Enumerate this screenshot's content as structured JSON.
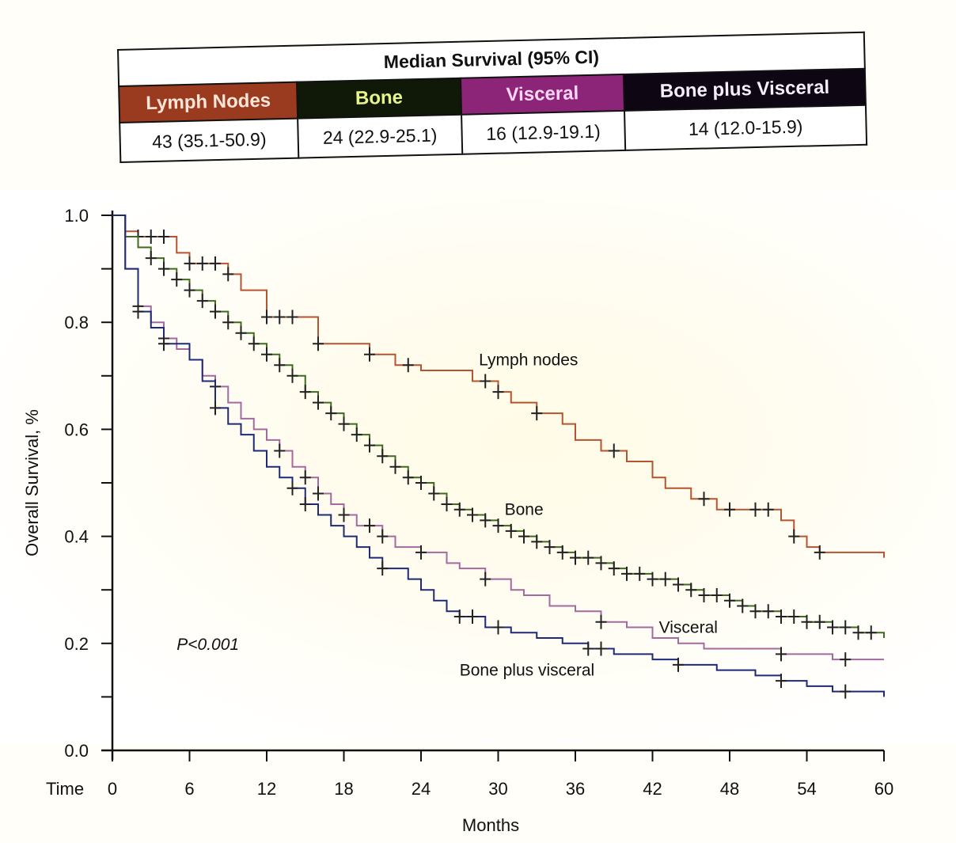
{
  "table": {
    "title": "Median Survival (95% CI)",
    "columns": [
      {
        "label": "Lymph Nodes",
        "value": "43 (35.1-50.9)",
        "bg": "#9a3a1f",
        "fg": "#ffe6d8"
      },
      {
        "label": "Bone",
        "value": "24 (22.9-25.1)",
        "bg": "#101808",
        "fg": "#e8f58a"
      },
      {
        "label": "Visceral",
        "value": "16 (12.9-19.1)",
        "bg": "#8c2478",
        "fg": "#ffd6f4"
      },
      {
        "label": "Bone plus Visceral",
        "value": "14 (12.0-15.9)",
        "bg": "#0e0612",
        "fg": "#f4eefa"
      }
    ]
  },
  "chart_data": {
    "type": "line",
    "subtype": "kaplan-meier step",
    "xlabel": "Months",
    "ylabel": "Overall Survival, %",
    "x_prefix_label": "Time",
    "xlim": [
      0,
      60
    ],
    "ylim": [
      0,
      1.0
    ],
    "x_ticks": [
      0,
      6,
      12,
      18,
      24,
      30,
      36,
      42,
      48,
      54,
      60
    ],
    "x_tick_labels": [
      "0",
      "6",
      "12",
      "18",
      "24",
      "30",
      "36",
      "42",
      "48",
      "54",
      "60"
    ],
    "y_ticks": [
      0.0,
      0.1,
      0.2,
      0.3,
      0.4,
      0.5,
      0.6,
      0.7,
      0.8,
      0.9,
      1.0
    ],
    "y_tick_labels": [
      "0.0",
      "0.2",
      "0.4",
      "0.6",
      "0.8",
      "1.0"
    ],
    "grid": false,
    "annotations": [
      {
        "text": "P<0.001",
        "x": 5,
        "y": 0.2
      }
    ],
    "series": [
      {
        "name": "Lymph nodes",
        "color": "#b5542f",
        "label_at": {
          "x": 28.5,
          "y": 0.72
        },
        "steps": [
          [
            0,
            1.0
          ],
          [
            1,
            0.97
          ],
          [
            2,
            0.96
          ],
          [
            5,
            0.93
          ],
          [
            6,
            0.91
          ],
          [
            9,
            0.89
          ],
          [
            10,
            0.86
          ],
          [
            12,
            0.81
          ],
          [
            16,
            0.76
          ],
          [
            20,
            0.74
          ],
          [
            22,
            0.72
          ],
          [
            24,
            0.71
          ],
          [
            28,
            0.69
          ],
          [
            30,
            0.67
          ],
          [
            31,
            0.65
          ],
          [
            33,
            0.63
          ],
          [
            35,
            0.61
          ],
          [
            36,
            0.58
          ],
          [
            38,
            0.56
          ],
          [
            40,
            0.54
          ],
          [
            42,
            0.51
          ],
          [
            43,
            0.49
          ],
          [
            45,
            0.47
          ],
          [
            47,
            0.45
          ],
          [
            52,
            0.43
          ],
          [
            53,
            0.4
          ],
          [
            54,
            0.38
          ],
          [
            55,
            0.37
          ],
          [
            60,
            0.36
          ]
        ],
        "censor_x": [
          2,
          3,
          4,
          6,
          7,
          8,
          9,
          12,
          13,
          14,
          16,
          20,
          23,
          29,
          30,
          33,
          39,
          46,
          48,
          50,
          51,
          53,
          55
        ]
      },
      {
        "name": "Bone",
        "color": "#3f6b1f",
        "label_at": {
          "x": 30.5,
          "y": 0.44
        },
        "steps": [
          [
            0,
            1.0
          ],
          [
            1,
            0.96
          ],
          [
            2,
            0.94
          ],
          [
            3,
            0.92
          ],
          [
            4,
            0.9
          ],
          [
            5,
            0.88
          ],
          [
            6,
            0.86
          ],
          [
            7,
            0.84
          ],
          [
            8,
            0.82
          ],
          [
            9,
            0.8
          ],
          [
            10,
            0.78
          ],
          [
            11,
            0.76
          ],
          [
            12,
            0.74
          ],
          [
            13,
            0.72
          ],
          [
            14,
            0.7
          ],
          [
            15,
            0.67
          ],
          [
            16,
            0.65
          ],
          [
            17,
            0.63
          ],
          [
            18,
            0.61
          ],
          [
            19,
            0.59
          ],
          [
            20,
            0.57
          ],
          [
            21,
            0.55
          ],
          [
            22,
            0.53
          ],
          [
            23,
            0.51
          ],
          [
            24,
            0.5
          ],
          [
            25,
            0.48
          ],
          [
            26,
            0.46
          ],
          [
            27,
            0.45
          ],
          [
            28,
            0.44
          ],
          [
            29,
            0.43
          ],
          [
            30,
            0.42
          ],
          [
            31,
            0.41
          ],
          [
            32,
            0.4
          ],
          [
            33,
            0.39
          ],
          [
            34,
            0.38
          ],
          [
            35,
            0.37
          ],
          [
            36,
            0.36
          ],
          [
            38,
            0.35
          ],
          [
            39,
            0.34
          ],
          [
            40,
            0.33
          ],
          [
            42,
            0.32
          ],
          [
            44,
            0.31
          ],
          [
            45,
            0.3
          ],
          [
            46,
            0.29
          ],
          [
            48,
            0.28
          ],
          [
            49,
            0.27
          ],
          [
            50,
            0.26
          ],
          [
            52,
            0.25
          ],
          [
            54,
            0.24
          ],
          [
            56,
            0.23
          ],
          [
            58,
            0.22
          ],
          [
            60,
            0.21
          ]
        ],
        "censor_x": [
          3,
          4,
          5,
          6,
          7,
          8,
          9,
          10,
          11,
          12,
          13,
          14,
          15,
          16,
          17,
          18,
          19,
          20,
          21,
          22,
          23,
          24,
          25,
          26,
          27,
          28,
          29,
          30,
          31,
          32,
          33,
          34,
          35,
          36,
          37,
          38,
          39,
          40,
          41,
          42,
          43,
          44,
          45,
          46,
          47,
          48,
          49,
          50,
          51,
          52,
          53,
          54,
          55,
          56,
          57,
          58,
          59
        ]
      },
      {
        "name": "Visceral",
        "color": "#a46a9e",
        "label_at": {
          "x": 42.5,
          "y": 0.22
        },
        "steps": [
          [
            0,
            1.0
          ],
          [
            1,
            0.9
          ],
          [
            2,
            0.83
          ],
          [
            3,
            0.8
          ],
          [
            4,
            0.77
          ],
          [
            5,
            0.75
          ],
          [
            6,
            0.73
          ],
          [
            7,
            0.7
          ],
          [
            8,
            0.68
          ],
          [
            9,
            0.65
          ],
          [
            10,
            0.62
          ],
          [
            11,
            0.6
          ],
          [
            12,
            0.58
          ],
          [
            13,
            0.56
          ],
          [
            14,
            0.53
          ],
          [
            15,
            0.51
          ],
          [
            16,
            0.48
          ],
          [
            17,
            0.46
          ],
          [
            18,
            0.44
          ],
          [
            19,
            0.42
          ],
          [
            21,
            0.4
          ],
          [
            22,
            0.38
          ],
          [
            24,
            0.37
          ],
          [
            26,
            0.35
          ],
          [
            27,
            0.34
          ],
          [
            29,
            0.32
          ],
          [
            31,
            0.3
          ],
          [
            32,
            0.29
          ],
          [
            34,
            0.27
          ],
          [
            36,
            0.26
          ],
          [
            38,
            0.24
          ],
          [
            40,
            0.23
          ],
          [
            42,
            0.21
          ],
          [
            44,
            0.2
          ],
          [
            46,
            0.19
          ],
          [
            52,
            0.18
          ],
          [
            56,
            0.17
          ],
          [
            60,
            0.17
          ]
        ],
        "censor_x": [
          2,
          4,
          8,
          13,
          15,
          16,
          18,
          20,
          21,
          24,
          29,
          38,
          52,
          57
        ]
      },
      {
        "name": "Bone plus visceral",
        "color": "#1e2a78",
        "label_at": {
          "x": 27,
          "y": 0.14
        },
        "steps": [
          [
            0,
            1.0
          ],
          [
            1,
            0.9
          ],
          [
            2,
            0.82
          ],
          [
            3,
            0.79
          ],
          [
            4,
            0.76
          ],
          [
            6,
            0.73
          ],
          [
            7,
            0.69
          ],
          [
            8,
            0.64
          ],
          [
            9,
            0.61
          ],
          [
            10,
            0.59
          ],
          [
            11,
            0.56
          ],
          [
            12,
            0.53
          ],
          [
            13,
            0.51
          ],
          [
            14,
            0.49
          ],
          [
            15,
            0.46
          ],
          [
            16,
            0.44
          ],
          [
            17,
            0.42
          ],
          [
            18,
            0.4
          ],
          [
            19,
            0.38
          ],
          [
            20,
            0.36
          ],
          [
            21,
            0.34
          ],
          [
            23,
            0.32
          ],
          [
            24,
            0.3
          ],
          [
            25,
            0.28
          ],
          [
            26,
            0.26
          ],
          [
            27,
            0.25
          ],
          [
            29,
            0.23
          ],
          [
            31,
            0.22
          ],
          [
            33,
            0.21
          ],
          [
            35,
            0.2
          ],
          [
            37,
            0.19
          ],
          [
            39,
            0.18
          ],
          [
            42,
            0.17
          ],
          [
            44,
            0.16
          ],
          [
            47,
            0.15
          ],
          [
            50,
            0.14
          ],
          [
            52,
            0.13
          ],
          [
            54,
            0.12
          ],
          [
            56,
            0.11
          ],
          [
            60,
            0.1
          ]
        ],
        "censor_x": [
          2,
          4,
          8,
          14,
          15,
          21,
          27,
          28,
          30,
          37,
          38,
          44,
          52,
          57
        ]
      }
    ]
  }
}
